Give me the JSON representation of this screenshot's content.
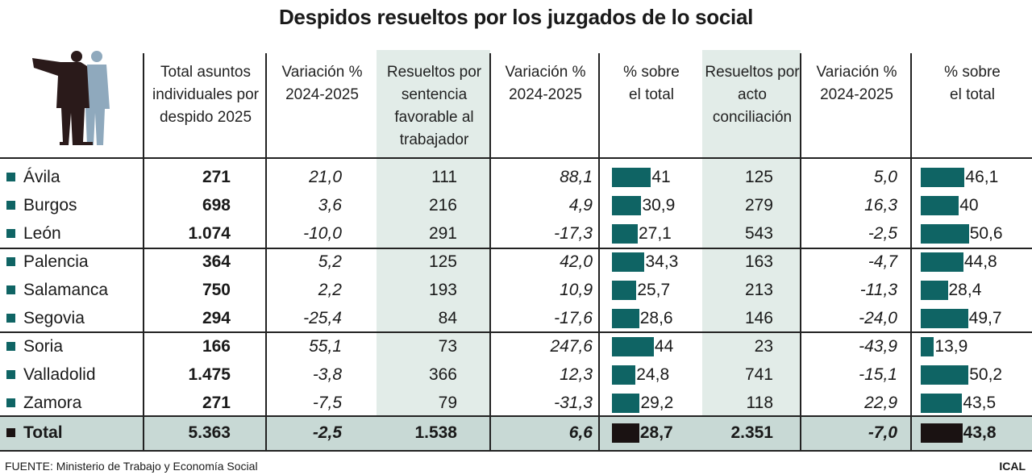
{
  "title": "Despidos resueltos por los juzgados de lo social",
  "columns": [
    "Total asuntos individuales por despido 2025",
    "Variación % 2024-2025",
    "Resueltos por sentencia favorable al trabajador",
    "Variación % 2024-2025",
    "% sobre el total",
    "Resueltos por acto conciliación",
    "Variación % 2024-2025",
    "% sobre el total"
  ],
  "colors": {
    "bar": "#0f6464",
    "total_bar": "#1a1212",
    "shade": "#e2ece8",
    "total_row": "#c8d9d5"
  },
  "chart_data": {
    "type": "table",
    "title": "Despidos resueltos por los juzgados de lo social",
    "rows": [
      {
        "name": "Ávila",
        "total": "271",
        "var1": "21,0",
        "sentencia": "111",
        "var2": "88,1",
        "pct1": 41,
        "pct1_label": "41",
        "conciliacion": "125",
        "var3": "5,0",
        "pct2": 46.1,
        "pct2_label": "46,1"
      },
      {
        "name": "Burgos",
        "total": "698",
        "var1": "3,6",
        "sentencia": "216",
        "var2": "4,9",
        "pct1": 30.9,
        "pct1_label": "30,9",
        "conciliacion": "279",
        "var3": "16,3",
        "pct2": 40,
        "pct2_label": "40"
      },
      {
        "name": "León",
        "total": "1.074",
        "var1": "-10,0",
        "sentencia": "291",
        "var2": "-17,3",
        "pct1": 27.1,
        "pct1_label": "27,1",
        "conciliacion": "543",
        "var3": "-2,5",
        "pct2": 50.6,
        "pct2_label": "50,6"
      },
      {
        "name": "Palencia",
        "total": "364",
        "var1": "5,2",
        "sentencia": "125",
        "var2": "42,0",
        "pct1": 34.3,
        "pct1_label": "34,3",
        "conciliacion": "163",
        "var3": "-4,7",
        "pct2": 44.8,
        "pct2_label": "44,8"
      },
      {
        "name": "Salamanca",
        "total": "750",
        "var1": "2,2",
        "sentencia": "193",
        "var2": "10,9",
        "pct1": 25.7,
        "pct1_label": "25,7",
        "conciliacion": "213",
        "var3": "-11,3",
        "pct2": 28.4,
        "pct2_label": "28,4"
      },
      {
        "name": "Segovia",
        "total": "294",
        "var1": "-25,4",
        "sentencia": "84",
        "var2": "-17,6",
        "pct1": 28.6,
        "pct1_label": "28,6",
        "conciliacion": "146",
        "var3": "-24,0",
        "pct2": 49.7,
        "pct2_label": "49,7"
      },
      {
        "name": "Soria",
        "total": "166",
        "var1": "55,1",
        "sentencia": "73",
        "var2": "247,6",
        "pct1": 44,
        "pct1_label": "44",
        "conciliacion": "23",
        "var3": "-43,9",
        "pct2": 13.9,
        "pct2_label": "13,9"
      },
      {
        "name": "Valladolid",
        "total": "1.475",
        "var1": "-3,8",
        "sentencia": "366",
        "var2": "12,3",
        "pct1": 24.8,
        "pct1_label": "24,8",
        "conciliacion": "741",
        "var3": "-15,1",
        "pct2": 50.2,
        "pct2_label": "50,2"
      },
      {
        "name": "Zamora",
        "total": "271",
        "var1": "-7,5",
        "sentencia": "79",
        "var2": "-31,3",
        "pct1": 29.2,
        "pct1_label": "29,2",
        "conciliacion": "118",
        "var3": "22,9",
        "pct2": 43.5,
        "pct2_label": "43,5"
      }
    ],
    "total": {
      "name": "Total",
      "total": "5.363",
      "var1": "-2,5",
      "sentencia": "1.538",
      "var2": "6,6",
      "pct1": 28.7,
      "pct1_label": "28,7",
      "conciliacion": "2.351",
      "var3": "-7,0",
      "pct2": 43.8,
      "pct2_label": "43,8"
    }
  },
  "footer": "FUENTE: Ministerio de Trabajo y Economía Social",
  "brand": "ICAL"
}
